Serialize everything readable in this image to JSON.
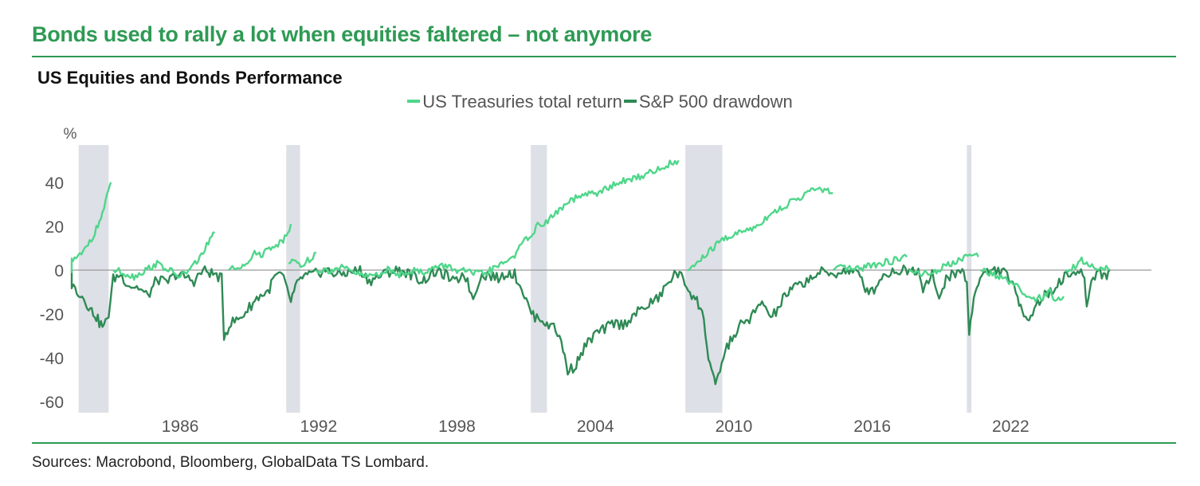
{
  "header": {
    "headline": "Bonds used to rally a lot when equities faltered – not anymore"
  },
  "footer": {
    "sources": "Sources: Macrobond, Bloomberg, GlobalData TS Lombard."
  },
  "colors": {
    "accent": "#2e9a54",
    "treasuries": "#4fd68a",
    "sp500": "#2f8a55",
    "recession_band": "#dde0e6",
    "zero_line": "#9a9a9a"
  },
  "chart_data": {
    "type": "line",
    "title": "US Equities and Bonds Performance",
    "ylabel": "%",
    "xlabel": "",
    "ylim": [
      -65,
      57
    ],
    "xlim": [
      1981.3,
      2028.1
    ],
    "yticks": [
      40,
      20,
      0,
      -20,
      -40,
      -60
    ],
    "xticks": [
      1986,
      1992,
      1998,
      2004,
      2010,
      2016,
      2022
    ],
    "legend": "top-center",
    "grid": false,
    "recession_shading": [
      [
        1981.6,
        1982.9
      ],
      [
        1990.6,
        1991.2
      ],
      [
        2001.2,
        2001.9
      ],
      [
        2007.9,
        2009.5
      ],
      [
        2020.1,
        2020.3
      ]
    ],
    "series": [
      {
        "name": "US Treasuries total return",
        "color": "#4fd68a",
        "segments": [
          [
            [
              1980.5,
              0
            ],
            [
              1980.9,
              3
            ],
            [
              1981.2,
              4
            ],
            [
              1981.5,
              5
            ],
            [
              1981.8,
              8
            ],
            [
              1982.0,
              12
            ],
            [
              1982.3,
              17
            ],
            [
              1982.5,
              22
            ],
            [
              1982.7,
              28
            ],
            [
              1982.9,
              36
            ],
            [
              1983.0,
              40
            ]
          ],
          [
            [
              1983.1,
              0
            ],
            [
              1983.5,
              -1
            ],
            [
              1984.0,
              -3
            ],
            [
              1984.5,
              0
            ],
            [
              1985.0,
              3
            ],
            [
              1985.5,
              0
            ],
            [
              1986.0,
              -3
            ],
            [
              1986.5,
              1
            ],
            [
              1987.0,
              8
            ],
            [
              1987.3,
              14
            ],
            [
              1987.5,
              17
            ]
          ],
          [
            [
              1988.1,
              0
            ],
            [
              1988.5,
              1
            ],
            [
              1989.0,
              5
            ],
            [
              1989.3,
              8
            ],
            [
              1989.5,
              7
            ],
            [
              1990.0,
              11
            ],
            [
              1990.4,
              13
            ],
            [
              1990.6,
              16
            ],
            [
              1990.8,
              21
            ]
          ],
          [
            [
              1990.7,
              3
            ],
            [
              1991.0,
              4
            ],
            [
              1991.3,
              2
            ],
            [
              1991.6,
              5
            ],
            [
              1991.9,
              8
            ]
          ],
          [
            [
              1991.9,
              0
            ],
            [
              1992.5,
              0
            ],
            [
              1993.0,
              1
            ],
            [
              1993.5,
              -1
            ],
            [
              1994.0,
              -3
            ],
            [
              1994.5,
              -2
            ],
            [
              1995.0,
              0
            ],
            [
              1995.5,
              -2
            ],
            [
              1996.0,
              0
            ],
            [
              1996.5,
              -1
            ],
            [
              1997.0,
              1
            ],
            [
              1997.5,
              2
            ],
            [
              1998.0,
              0
            ],
            [
              1998.5,
              -1
            ],
            [
              1999.0,
              -2
            ],
            [
              1999.5,
              0
            ],
            [
              2000.0,
              3
            ],
            [
              2000.5,
              7
            ],
            [
              2001.0,
              14
            ],
            [
              2001.5,
              20
            ],
            [
              2002.0,
              23
            ],
            [
              2002.5,
              28
            ],
            [
              2003.0,
              32
            ],
            [
              2003.5,
              34
            ],
            [
              2004.0,
              35
            ],
            [
              2004.5,
              37
            ],
            [
              2005.0,
              40
            ],
            [
              2005.5,
              41
            ],
            [
              2006.0,
              43
            ],
            [
              2006.5,
              45
            ],
            [
              2007.0,
              47
            ],
            [
              2007.3,
              49
            ],
            [
              2007.6,
              50
            ]
          ],
          [
            [
              2008.0,
              0
            ],
            [
              2008.5,
              4
            ],
            [
              2009.0,
              9
            ],
            [
              2009.5,
              14
            ],
            [
              2010.0,
              16
            ],
            [
              2010.5,
              18
            ],
            [
              2011.0,
              20
            ],
            [
              2011.5,
              25
            ],
            [
              2012.0,
              28
            ],
            [
              2012.5,
              31
            ],
            [
              2013.0,
              34
            ],
            [
              2013.5,
              37
            ],
            [
              2014.0,
              36
            ],
            [
              2014.3,
              35
            ]
          ],
          [
            [
              2014.3,
              0
            ],
            [
              2014.8,
              1
            ],
            [
              2015.3,
              0
            ],
            [
              2015.8,
              2
            ],
            [
              2016.3,
              3
            ],
            [
              2016.8,
              4
            ],
            [
              2017.2,
              5
            ],
            [
              2017.5,
              6
            ]
          ],
          [
            [
              2017.6,
              0
            ],
            [
              2018.0,
              -1
            ],
            [
              2018.5,
              -2
            ],
            [
              2019.0,
              1
            ],
            [
              2019.5,
              3
            ],
            [
              2019.9,
              5
            ],
            [
              2020.3,
              7
            ],
            [
              2020.6,
              6
            ]
          ],
          [
            [
              2020.7,
              0
            ],
            [
              2021.0,
              -1
            ],
            [
              2021.5,
              -3
            ],
            [
              2022.0,
              -6
            ],
            [
              2022.3,
              -8
            ],
            [
              2022.6,
              -12
            ],
            [
              2023.0,
              -14
            ],
            [
              2023.4,
              -12
            ],
            [
              2023.7,
              -10
            ],
            [
              2024.0,
              -14
            ],
            [
              2024.3,
              -12
            ]
          ],
          [
            [
              2024.4,
              0
            ],
            [
              2024.8,
              2
            ],
            [
              2025.0,
              5
            ],
            [
              2025.3,
              3
            ],
            [
              2025.6,
              2
            ],
            [
              2025.9,
              1
            ],
            [
              2026.3,
              0
            ]
          ]
        ]
      },
      {
        "name": "S&P 500 drawdown",
        "color": "#2f8a55",
        "points": [
          [
            1980.5,
            0
          ],
          [
            1980.9,
            -3
          ],
          [
            1981.3,
            -7
          ],
          [
            1981.6,
            -10
          ],
          [
            1981.9,
            -14
          ],
          [
            1982.1,
            -18
          ],
          [
            1982.3,
            -20
          ],
          [
            1982.5,
            -24
          ],
          [
            1982.7,
            -26
          ],
          [
            1982.9,
            -20
          ],
          [
            1983.1,
            -4
          ],
          [
            1983.4,
            -2
          ],
          [
            1983.8,
            -7
          ],
          [
            1984.2,
            -8
          ],
          [
            1984.6,
            -12
          ],
          [
            1985.0,
            -4
          ],
          [
            1985.4,
            -6
          ],
          [
            1985.8,
            -2
          ],
          [
            1986.2,
            -3
          ],
          [
            1986.6,
            -5
          ],
          [
            1987.0,
            0
          ],
          [
            1987.5,
            -2
          ],
          [
            1987.8,
            -4
          ],
          [
            1987.9,
            -30
          ],
          [
            1988.2,
            -24
          ],
          [
            1988.6,
            -22
          ],
          [
            1989.0,
            -17
          ],
          [
            1989.4,
            -12
          ],
          [
            1989.8,
            -10
          ],
          [
            1990.1,
            -3
          ],
          [
            1990.4,
            -2
          ],
          [
            1990.8,
            -14
          ],
          [
            1991.0,
            -8
          ],
          [
            1991.3,
            -3
          ],
          [
            1991.8,
            -2
          ],
          [
            1992.3,
            0
          ],
          [
            1992.8,
            -2
          ],
          [
            1993.3,
            -1
          ],
          [
            1993.8,
            0
          ],
          [
            1994.2,
            -5
          ],
          [
            1994.6,
            -3
          ],
          [
            1995.0,
            -1
          ],
          [
            1995.5,
            0
          ],
          [
            1996.0,
            -2
          ],
          [
            1996.5,
            -5
          ],
          [
            1997.0,
            -1
          ],
          [
            1997.5,
            -2
          ],
          [
            1997.9,
            -6
          ],
          [
            1998.3,
            -1
          ],
          [
            1998.7,
            -13
          ],
          [
            1999.0,
            -3
          ],
          [
            1999.4,
            -2
          ],
          [
            1999.8,
            -4
          ],
          [
            2000.2,
            -1
          ],
          [
            2000.5,
            -2
          ],
          [
            2000.8,
            -8
          ],
          [
            2001.0,
            -14
          ],
          [
            2001.3,
            -21
          ],
          [
            2001.7,
            -22
          ],
          [
            2001.9,
            -26
          ],
          [
            2002.2,
            -24
          ],
          [
            2002.6,
            -36
          ],
          [
            2002.8,
            -46
          ],
          [
            2003.1,
            -44
          ],
          [
            2003.3,
            -40
          ],
          [
            2003.6,
            -34
          ],
          [
            2004.0,
            -29
          ],
          [
            2004.4,
            -27
          ],
          [
            2004.8,
            -24
          ],
          [
            2005.2,
            -25
          ],
          [
            2005.6,
            -21
          ],
          [
            2006.0,
            -18
          ],
          [
            2006.4,
            -15
          ],
          [
            2006.8,
            -12
          ],
          [
            2007.2,
            -5
          ],
          [
            2007.5,
            -1
          ],
          [
            2007.8,
            -4
          ],
          [
            2008.1,
            -10
          ],
          [
            2008.4,
            -14
          ],
          [
            2008.7,
            -22
          ],
          [
            2008.9,
            -40
          ],
          [
            2009.1,
            -48
          ],
          [
            2009.2,
            -54
          ],
          [
            2009.4,
            -45
          ],
          [
            2009.7,
            -35
          ],
          [
            2010.0,
            -30
          ],
          [
            2010.3,
            -25
          ],
          [
            2010.6,
            -23
          ],
          [
            2011.0,
            -18
          ],
          [
            2011.3,
            -15
          ],
          [
            2011.6,
            -22
          ],
          [
            2011.9,
            -18
          ],
          [
            2012.2,
            -12
          ],
          [
            2012.6,
            -8
          ],
          [
            2013.0,
            -6
          ],
          [
            2013.4,
            -3
          ],
          [
            2013.8,
            -1
          ],
          [
            2014.2,
            -2
          ],
          [
            2014.6,
            -1
          ],
          [
            2015.0,
            0
          ],
          [
            2015.4,
            -2
          ],
          [
            2015.7,
            -8
          ],
          [
            2016.0,
            -10
          ],
          [
            2016.4,
            -3
          ],
          [
            2016.8,
            -1
          ],
          [
            2017.2,
            0
          ],
          [
            2017.6,
            0
          ],
          [
            2018.0,
            0
          ],
          [
            2018.2,
            -8
          ],
          [
            2018.6,
            -1
          ],
          [
            2018.9,
            -15
          ],
          [
            2019.2,
            -3
          ],
          [
            2019.6,
            -2
          ],
          [
            2019.9,
            0
          ],
          [
            2020.1,
            -5
          ],
          [
            2020.2,
            -30
          ],
          [
            2020.4,
            -12
          ],
          [
            2020.6,
            -5
          ],
          [
            2020.9,
            -1
          ],
          [
            2021.3,
            0
          ],
          [
            2021.7,
            -1
          ],
          [
            2022.0,
            -4
          ],
          [
            2022.3,
            -14
          ],
          [
            2022.5,
            -18
          ],
          [
            2022.8,
            -22
          ],
          [
            2023.1,
            -16
          ],
          [
            2023.4,
            -12
          ],
          [
            2023.8,
            -10
          ],
          [
            2024.1,
            -5
          ],
          [
            2024.5,
            -2
          ],
          [
            2024.9,
            -1
          ],
          [
            2025.2,
            -3
          ],
          [
            2025.3,
            -17
          ],
          [
            2025.5,
            -5
          ],
          [
            2025.8,
            0
          ],
          [
            2026.1,
            -3
          ],
          [
            2026.3,
            0
          ]
        ]
      }
    ]
  }
}
